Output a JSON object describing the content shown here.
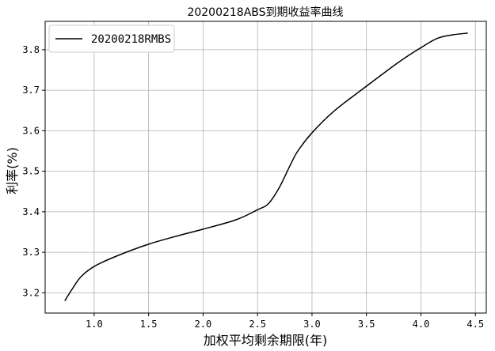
{
  "chart_data": {
    "type": "line",
    "title": "20200218ABS到期收益率曲线",
    "xlabel": "加权平均剩余期限(年)",
    "ylabel": "利率(%)",
    "xlim": [
      0.55,
      4.6
    ],
    "ylim": [
      3.15,
      3.87
    ],
    "xticks": [
      1.0,
      1.5,
      2.0,
      2.5,
      3.0,
      3.5,
      4.0,
      4.5
    ],
    "xtick_labels": [
      "1.0",
      "1.5",
      "2.0",
      "2.5",
      "3.0",
      "3.5",
      "4.0",
      "4.5"
    ],
    "yticks": [
      3.2,
      3.3,
      3.4,
      3.5,
      3.6,
      3.7,
      3.8
    ],
    "ytick_labels": [
      "3.2",
      "3.3",
      "3.4",
      "3.5",
      "3.6",
      "3.7",
      "3.8"
    ],
    "grid": true,
    "legend_position": "top-left",
    "color": "#000000",
    "series": [
      {
        "name": "20200218RMBS",
        "x": [
          0.73,
          0.8,
          0.88,
          1.0,
          1.2,
          1.5,
          1.8,
          2.0,
          2.3,
          2.5,
          2.6,
          2.7,
          2.8,
          2.87,
          3.0,
          3.2,
          3.5,
          3.8,
          4.0,
          4.15,
          4.3,
          4.43
        ],
        "y": [
          3.18,
          3.21,
          3.24,
          3.265,
          3.29,
          3.32,
          3.343,
          3.357,
          3.38,
          3.405,
          3.42,
          3.46,
          3.515,
          3.55,
          3.595,
          3.648,
          3.71,
          3.77,
          3.805,
          3.828,
          3.837,
          3.841
        ]
      }
    ]
  }
}
